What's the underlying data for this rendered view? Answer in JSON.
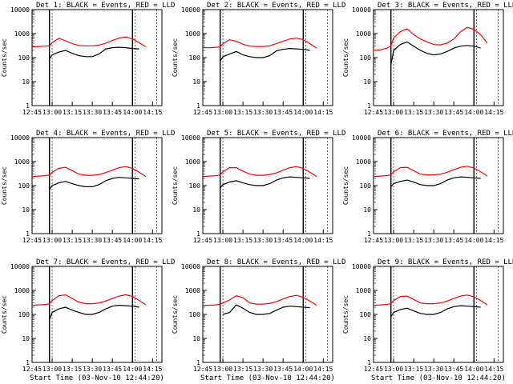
{
  "chart_data": [
    {
      "type": "line",
      "title": "Det 1: BLACK = Events, RED = LLD",
      "xlabel": "",
      "ylabel": "Counts/sec",
      "x": [
        "12:45",
        "12:50",
        "12:55",
        "12:58",
        "13:00",
        "13:05",
        "13:10",
        "13:15",
        "13:20",
        "13:25",
        "13:30",
        "13:35",
        "13:40",
        "13:45",
        "13:50",
        "13:55",
        "14:00",
        "14:05",
        "14:10"
      ],
      "xticks": [
        "12:45",
        "13:00",
        "13:15",
        "13:30",
        "13:45",
        "14:00",
        "14:15"
      ],
      "ylim": [
        1,
        10000
      ],
      "yscale": "log",
      "yticks": [
        "10000",
        "1000",
        "100",
        "10",
        "1"
      ],
      "series": [
        {
          "color": "#ff0000",
          "values": [
            280,
            290,
            300,
            310,
            420,
            640,
            500,
            380,
            320,
            310,
            310,
            330,
            400,
            520,
            650,
            720,
            600,
            420,
            280
          ]
        },
        {
          "color": "#000000",
          "values": [
            null,
            null,
            null,
            90,
            130,
            170,
            200,
            150,
            120,
            110,
            110,
            140,
            230,
            260,
            270,
            260,
            240,
            230,
            null
          ]
        }
      ]
    },
    {
      "type": "line",
      "title": "Det 2: BLACK = Events, RED = LLD",
      "xlabel": "",
      "ylabel": "Counts/sec",
      "x": [
        "12:45",
        "12:50",
        "12:55",
        "12:58",
        "13:00",
        "13:05",
        "13:10",
        "13:15",
        "13:20",
        "13:25",
        "13:30",
        "13:35",
        "13:40",
        "13:45",
        "13:50",
        "13:55",
        "14:00",
        "14:05",
        "14:10"
      ],
      "xticks": [
        "12:45",
        "13:00",
        "13:15",
        "13:30",
        "13:45",
        "14:00",
        "14:15"
      ],
      "ylim": [
        1,
        10000
      ],
      "yscale": "log",
      "yticks": [
        "10000",
        "1000",
        "100",
        "10",
        "1"
      ],
      "series": [
        {
          "color": "#ff0000",
          "values": [
            260,
            260,
            270,
            280,
            380,
            560,
            480,
            360,
            300,
            290,
            290,
            310,
            380,
            480,
            600,
            650,
            560,
            380,
            250
          ]
        },
        {
          "color": "#000000",
          "values": [
            null,
            null,
            null,
            70,
            110,
            140,
            180,
            130,
            110,
            100,
            100,
            120,
            190,
            220,
            240,
            230,
            220,
            200,
            null
          ]
        }
      ]
    },
    {
      "type": "line",
      "title": "Det 3: BLACK = Events, RED = LLD",
      "xlabel": "",
      "ylabel": "Counts/sec",
      "x": [
        "12:45",
        "12:50",
        "12:55",
        "12:58",
        "13:00",
        "13:05",
        "13:10",
        "13:15",
        "13:20",
        "13:25",
        "13:30",
        "13:35",
        "13:40",
        "13:45",
        "13:50",
        "13:55",
        "14:00",
        "14:05",
        "14:10"
      ],
      "xticks": [
        "12:45",
        "13:00",
        "13:15",
        "13:30",
        "13:45",
        "14:00",
        "14:15"
      ],
      "ylim": [
        1,
        10000
      ],
      "yscale": "log",
      "yticks": [
        "10000",
        "1000",
        "100",
        "10",
        "1"
      ],
      "series": [
        {
          "color": "#ff0000",
          "values": [
            200,
            210,
            250,
            300,
            650,
            1200,
            1600,
            900,
            600,
            450,
            350,
            340,
            400,
            600,
            1200,
            1800,
            1500,
            900,
            400
          ]
        },
        {
          "color": "#000000",
          "values": [
            null,
            null,
            null,
            50,
            200,
            350,
            450,
            300,
            200,
            150,
            130,
            140,
            180,
            250,
            300,
            320,
            300,
            250,
            null
          ]
        }
      ]
    },
    {
      "type": "line",
      "title": "Det 4: BLACK = Events, RED = LLD",
      "xlabel": "",
      "ylabel": "Counts/sec",
      "x": [
        "12:45",
        "12:50",
        "12:55",
        "12:58",
        "13:00",
        "13:05",
        "13:10",
        "13:15",
        "13:20",
        "13:25",
        "13:30",
        "13:35",
        "13:40",
        "13:45",
        "13:50",
        "13:55",
        "14:00",
        "14:05",
        "14:10"
      ],
      "xticks": [
        "12:45",
        "13:00",
        "13:15",
        "13:30",
        "13:45",
        "14:00",
        "14:15"
      ],
      "ylim": [
        1,
        10000
      ],
      "yscale": "log",
      "yticks": [
        "10000",
        "1000",
        "100",
        "10",
        "1"
      ],
      "series": [
        {
          "color": "#ff0000",
          "values": [
            240,
            250,
            260,
            280,
            360,
            520,
            580,
            420,
            300,
            270,
            270,
            290,
            350,
            440,
            560,
            620,
            520,
            360,
            240
          ]
        },
        {
          "color": "#000000",
          "values": [
            null,
            null,
            null,
            70,
            100,
            130,
            150,
            120,
            100,
            90,
            90,
            110,
            160,
            200,
            220,
            210,
            200,
            190,
            null
          ]
        }
      ]
    },
    {
      "type": "line",
      "title": "Det 5: BLACK = Events, RED = LLD",
      "xlabel": "",
      "ylabel": "Counts/sec",
      "x": [
        "12:45",
        "12:50",
        "12:55",
        "12:58",
        "13:00",
        "13:05",
        "13:10",
        "13:15",
        "13:20",
        "13:25",
        "13:30",
        "13:35",
        "13:40",
        "13:45",
        "13:50",
        "13:55",
        "14:00",
        "14:05",
        "14:10"
      ],
      "xticks": [
        "12:45",
        "13:00",
        "13:15",
        "13:30",
        "13:45",
        "14:00",
        "14:15"
      ],
      "ylim": [
        1,
        10000
      ],
      "yscale": "log",
      "yticks": [
        "10000",
        "1000",
        "100",
        "10",
        "1"
      ],
      "series": [
        {
          "color": "#ff0000",
          "values": [
            240,
            250,
            260,
            280,
            380,
            560,
            560,
            400,
            300,
            270,
            270,
            290,
            340,
            440,
            560,
            620,
            520,
            360,
            240
          ]
        },
        {
          "color": "#000000",
          "values": [
            null,
            null,
            null,
            80,
            110,
            140,
            160,
            130,
            110,
            100,
            100,
            120,
            170,
            210,
            230,
            220,
            210,
            200,
            null
          ]
        }
      ]
    },
    {
      "type": "line",
      "title": "Det 6: BLACK = Events, RED = LLD",
      "xlabel": "",
      "ylabel": "Counts/sec",
      "x": [
        "12:45",
        "12:50",
        "12:55",
        "12:58",
        "13:00",
        "13:05",
        "13:10",
        "13:15",
        "13:20",
        "13:25",
        "13:30",
        "13:35",
        "13:40",
        "13:45",
        "13:50",
        "13:55",
        "14:00",
        "14:05",
        "14:10"
      ],
      "xticks": [
        "12:45",
        "13:00",
        "13:15",
        "13:30",
        "13:45",
        "14:00",
        "14:15"
      ],
      "ylim": [
        1,
        10000
      ],
      "yscale": "log",
      "yticks": [
        "10000",
        "1000",
        "100",
        "10",
        "1"
      ],
      "series": [
        {
          "color": "#ff0000",
          "values": [
            240,
            250,
            260,
            280,
            380,
            560,
            580,
            420,
            300,
            280,
            280,
            300,
            360,
            460,
            580,
            640,
            540,
            380,
            250
          ]
        },
        {
          "color": "#000000",
          "values": [
            null,
            null,
            null,
            90,
            120,
            150,
            170,
            140,
            110,
            100,
            100,
            120,
            170,
            210,
            230,
            220,
            210,
            200,
            null
          ]
        }
      ]
    },
    {
      "type": "line",
      "title": "Det 7: BLACK = Events, RED = LLD",
      "xlabel": "Start Time (03-Nov-10 12:44:20)",
      "ylabel": "Counts/sec",
      "x": [
        "12:45",
        "12:50",
        "12:55",
        "12:58",
        "13:00",
        "13:05",
        "13:10",
        "13:15",
        "13:20",
        "13:25",
        "13:30",
        "13:35",
        "13:40",
        "13:45",
        "13:50",
        "13:55",
        "14:00",
        "14:05",
        "14:10"
      ],
      "xticks": [
        "12:45",
        "13:00",
        "13:15",
        "13:30",
        "13:45",
        "14:00",
        "14:15"
      ],
      "ylim": [
        1,
        10000
      ],
      "yscale": "log",
      "yticks": [
        "10000",
        "1000",
        "100",
        "10",
        "1"
      ],
      "series": [
        {
          "color": "#ff0000",
          "values": [
            240,
            250,
            260,
            280,
            380,
            600,
            650,
            460,
            320,
            280,
            280,
            300,
            360,
            460,
            580,
            660,
            560,
            380,
            250
          ]
        },
        {
          "color": "#000000",
          "values": [
            null,
            null,
            null,
            60,
            120,
            170,
            200,
            150,
            120,
            100,
            100,
            120,
            170,
            220,
            240,
            230,
            220,
            200,
            null
          ]
        }
      ]
    },
    {
      "type": "line",
      "title": "Det 8: BLACK = Events, RED = LLD",
      "xlabel": "Start Time (03-Nov-10 12:44:20)",
      "ylabel": "Counts/sec",
      "x": [
        "12:45",
        "12:50",
        "12:55",
        "12:58",
        "13:00",
        "13:05",
        "13:10",
        "13:15",
        "13:20",
        "13:25",
        "13:30",
        "13:35",
        "13:40",
        "13:45",
        "13:50",
        "13:55",
        "14:00",
        "14:05",
        "14:10"
      ],
      "xticks": [
        "12:45",
        "13:00",
        "13:15",
        "13:30",
        "13:45",
        "14:00",
        "14:15"
      ],
      "ylim": [
        1,
        10000
      ],
      "yscale": "log",
      "yticks": [
        "10000",
        "1000",
        "100",
        "10",
        "1"
      ],
      "series": [
        {
          "color": "#ff0000",
          "values": [
            240,
            240,
            250,
            270,
            300,
            400,
            600,
            500,
            300,
            270,
            270,
            290,
            340,
            440,
            560,
            620,
            520,
            360,
            240
          ]
        },
        {
          "color": "#000000",
          "values": [
            null,
            null,
            null,
            null,
            100,
            120,
            250,
            180,
            120,
            100,
            100,
            110,
            150,
            200,
            220,
            210,
            200,
            190,
            null
          ]
        }
      ]
    },
    {
      "type": "line",
      "title": "Det 9: BLACK = Events, RED = LLD",
      "xlabel": "Start Time (03-Nov-10 12:44:20)",
      "ylabel": "Counts/sec",
      "x": [
        "12:45",
        "12:50",
        "12:55",
        "12:58",
        "13:00",
        "13:05",
        "13:10",
        "13:15",
        "13:20",
        "13:25",
        "13:30",
        "13:35",
        "13:40",
        "13:45",
        "13:50",
        "13:55",
        "14:00",
        "14:05",
        "14:10"
      ],
      "xticks": [
        "12:45",
        "13:00",
        "13:15",
        "13:30",
        "13:45",
        "14:00",
        "14:15"
      ],
      "ylim": [
        1,
        10000
      ],
      "yscale": "log",
      "yticks": [
        "10000",
        "1000",
        "100",
        "10",
        "1"
      ],
      "series": [
        {
          "color": "#ff0000",
          "values": [
            240,
            250,
            260,
            280,
            380,
            560,
            580,
            420,
            300,
            280,
            280,
            300,
            360,
            460,
            580,
            640,
            540,
            380,
            250
          ]
        },
        {
          "color": "#000000",
          "values": [
            null,
            null,
            null,
            80,
            120,
            160,
            180,
            140,
            110,
            100,
            100,
            120,
            170,
            210,
            230,
            220,
            210,
            200,
            null
          ]
        }
      ]
    }
  ]
}
